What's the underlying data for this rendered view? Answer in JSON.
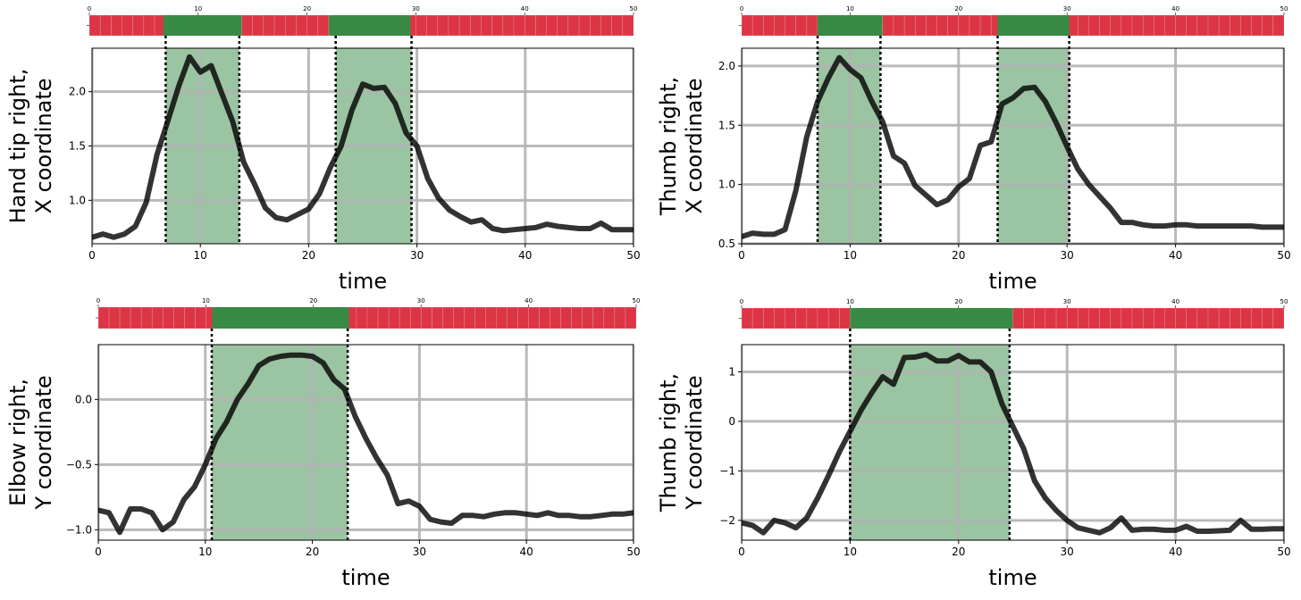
{
  "figure": {
    "xlabel_default": "time"
  },
  "chart_data": [
    {
      "type": "line",
      "ylabel": [
        "Hand tip right,",
        "X coordinate"
      ],
      "xlabel": "time",
      "xlim": [
        0,
        50
      ],
      "ylim": [
        0.6,
        2.4
      ],
      "xticks": [
        0,
        10,
        20,
        30,
        40,
        50
      ],
      "yticks": [
        1.0,
        1.5,
        2.0
      ],
      "ytick_labels": [
        "1.0",
        "1.5",
        "2.0"
      ],
      "grid": true,
      "highlight_regions": [
        [
          6.8,
          13.6
        ],
        [
          22.5,
          29.5
        ]
      ],
      "strip_ticks": [
        0,
        10,
        20,
        30,
        40,
        50
      ],
      "line_color": "#000000",
      "x": [
        0,
        1,
        2,
        3,
        4,
        5,
        6,
        7,
        8,
        9,
        10,
        11,
        12,
        13,
        14,
        15,
        16,
        17,
        18,
        19,
        20,
        21,
        22,
        23,
        24,
        25,
        26,
        27,
        28,
        29,
        30,
        31,
        32,
        33,
        34,
        35,
        36,
        37,
        38,
        39,
        40,
        41,
        42,
        43,
        44,
        45,
        46,
        47,
        48,
        49,
        50
      ],
      "y": [
        0.66,
        0.69,
        0.66,
        0.69,
        0.76,
        0.98,
        1.42,
        1.73,
        2.05,
        2.32,
        2.18,
        2.24,
        1.98,
        1.72,
        1.35,
        1.15,
        0.93,
        0.84,
        0.82,
        0.87,
        0.92,
        1.06,
        1.3,
        1.5,
        1.83,
        2.07,
        2.03,
        2.04,
        1.89,
        1.62,
        1.5,
        1.2,
        1.02,
        0.91,
        0.85,
        0.8,
        0.82,
        0.74,
        0.72,
        0.73,
        0.74,
        0.75,
        0.78,
        0.76,
        0.75,
        0.74,
        0.74,
        0.79,
        0.73,
        0.73,
        0.73
      ]
    },
    {
      "type": "line",
      "ylabel": [
        "Thumb right,",
        "X coordinate"
      ],
      "xlabel": "time",
      "xlim": [
        0,
        50
      ],
      "ylim": [
        0.5,
        2.15
      ],
      "xticks": [
        0,
        10,
        20,
        30,
        40,
        50
      ],
      "yticks": [
        0.5,
        1.0,
        1.5,
        2.0
      ],
      "ytick_labels": [
        "0.5",
        "1.0",
        "1.5",
        "2.0"
      ],
      "grid": true,
      "highlight_regions": [
        [
          7.0,
          12.8
        ],
        [
          23.6,
          30.2
        ]
      ],
      "strip_ticks": [
        0,
        10,
        20,
        30,
        40,
        50
      ],
      "line_color": "#000000",
      "x": [
        0,
        1,
        2,
        3,
        4,
        5,
        6,
        7,
        8,
        9,
        10,
        11,
        12,
        13,
        14,
        15,
        16,
        17,
        18,
        19,
        20,
        21,
        22,
        23,
        24,
        25,
        26,
        27,
        28,
        29,
        30,
        31,
        32,
        33,
        34,
        35,
        36,
        37,
        38,
        39,
        40,
        41,
        42,
        43,
        44,
        45,
        46,
        47,
        48,
        49,
        50
      ],
      "y": [
        0.56,
        0.59,
        0.58,
        0.58,
        0.62,
        0.95,
        1.4,
        1.7,
        1.9,
        2.07,
        1.97,
        1.9,
        1.7,
        1.53,
        1.24,
        1.18,
        0.99,
        0.91,
        0.83,
        0.87,
        0.98,
        1.05,
        1.33,
        1.36,
        1.68,
        1.73,
        1.81,
        1.82,
        1.7,
        1.52,
        1.32,
        1.13,
        1.0,
        0.9,
        0.8,
        0.68,
        0.68,
        0.66,
        0.65,
        0.65,
        0.66,
        0.66,
        0.65,
        0.65,
        0.65,
        0.65,
        0.65,
        0.65,
        0.64,
        0.64,
        0.64
      ]
    },
    {
      "type": "line",
      "ylabel": [
        "Elbow right,",
        "Y coordinate"
      ],
      "xlabel": "time",
      "xlim": [
        0,
        50
      ],
      "ylim": [
        -1.08,
        0.42
      ],
      "xticks": [
        0,
        10,
        20,
        30,
        40,
        50
      ],
      "yticks": [
        -1.0,
        -0.5,
        0.0
      ],
      "ytick_labels": [
        "−1.0",
        "−0.5",
        "0.0"
      ],
      "grid": true,
      "highlight_regions": [
        [
          10.6,
          23.3
        ]
      ],
      "strip_ticks": [
        0,
        10,
        20,
        30,
        40,
        50
      ],
      "line_color": "#000000",
      "x": [
        0,
        1,
        2,
        3,
        4,
        5,
        6,
        7,
        8,
        9,
        10,
        11,
        12,
        13,
        14,
        15,
        16,
        17,
        18,
        19,
        20,
        21,
        22,
        23,
        24,
        25,
        26,
        27,
        28,
        29,
        30,
        31,
        32,
        33,
        34,
        35,
        36,
        37,
        38,
        39,
        40,
        41,
        42,
        43,
        44,
        45,
        46,
        47,
        48,
        49,
        50
      ],
      "y": [
        -0.85,
        -0.87,
        -1.02,
        -0.84,
        -0.84,
        -0.87,
        -1.0,
        -0.94,
        -0.77,
        -0.67,
        -0.5,
        -0.3,
        -0.17,
        0.0,
        0.12,
        0.26,
        0.31,
        0.33,
        0.34,
        0.34,
        0.33,
        0.28,
        0.15,
        0.08,
        -0.13,
        -0.3,
        -0.45,
        -0.58,
        -0.8,
        -0.78,
        -0.82,
        -0.92,
        -0.94,
        -0.95,
        -0.89,
        -0.89,
        -0.9,
        -0.88,
        -0.87,
        -0.87,
        -0.88,
        -0.89,
        -0.87,
        -0.89,
        -0.89,
        -0.9,
        -0.9,
        -0.89,
        -0.88,
        -0.88,
        -0.87
      ]
    },
    {
      "type": "line",
      "ylabel": [
        "Thumb right,",
        "Y coordinate"
      ],
      "xlabel": "time",
      "xlim": [
        0,
        50
      ],
      "ylim": [
        -2.4,
        1.55
      ],
      "xticks": [
        0,
        10,
        20,
        30,
        40,
        50
      ],
      "yticks": [
        -2,
        -1,
        0,
        1
      ],
      "ytick_labels": [
        "−2",
        "−1",
        "0",
        "1"
      ],
      "grid": true,
      "highlight_regions": [
        [
          10.0,
          24.7
        ]
      ],
      "strip_ticks": [
        0,
        10,
        20,
        30,
        40,
        50
      ],
      "line_color": "#000000",
      "x": [
        0,
        1,
        2,
        3,
        4,
        5,
        6,
        7,
        8,
        9,
        10,
        11,
        12,
        13,
        14,
        15,
        16,
        17,
        18,
        19,
        20,
        21,
        22,
        23,
        24,
        25,
        26,
        27,
        28,
        29,
        30,
        31,
        32,
        33,
        34,
        35,
        36,
        37,
        38,
        39,
        40,
        41,
        42,
        43,
        44,
        45,
        46,
        47,
        48,
        49,
        50
      ],
      "y": [
        -2.05,
        -2.1,
        -2.25,
        -2.0,
        -2.05,
        -2.15,
        -1.95,
        -1.55,
        -1.1,
        -0.62,
        -0.2,
        0.22,
        0.58,
        0.9,
        0.75,
        1.29,
        1.3,
        1.35,
        1.22,
        1.22,
        1.33,
        1.2,
        1.2,
        1.0,
        0.35,
        -0.1,
        -0.55,
        -1.2,
        -1.55,
        -1.8,
        -2.0,
        -2.15,
        -2.2,
        -2.25,
        -2.15,
        -1.95,
        -2.2,
        -2.18,
        -2.18,
        -2.2,
        -2.2,
        -2.12,
        -2.22,
        -2.22,
        -2.21,
        -2.2,
        -2.0,
        -2.18,
        -2.18,
        -2.17,
        -2.17
      ]
    }
  ]
}
